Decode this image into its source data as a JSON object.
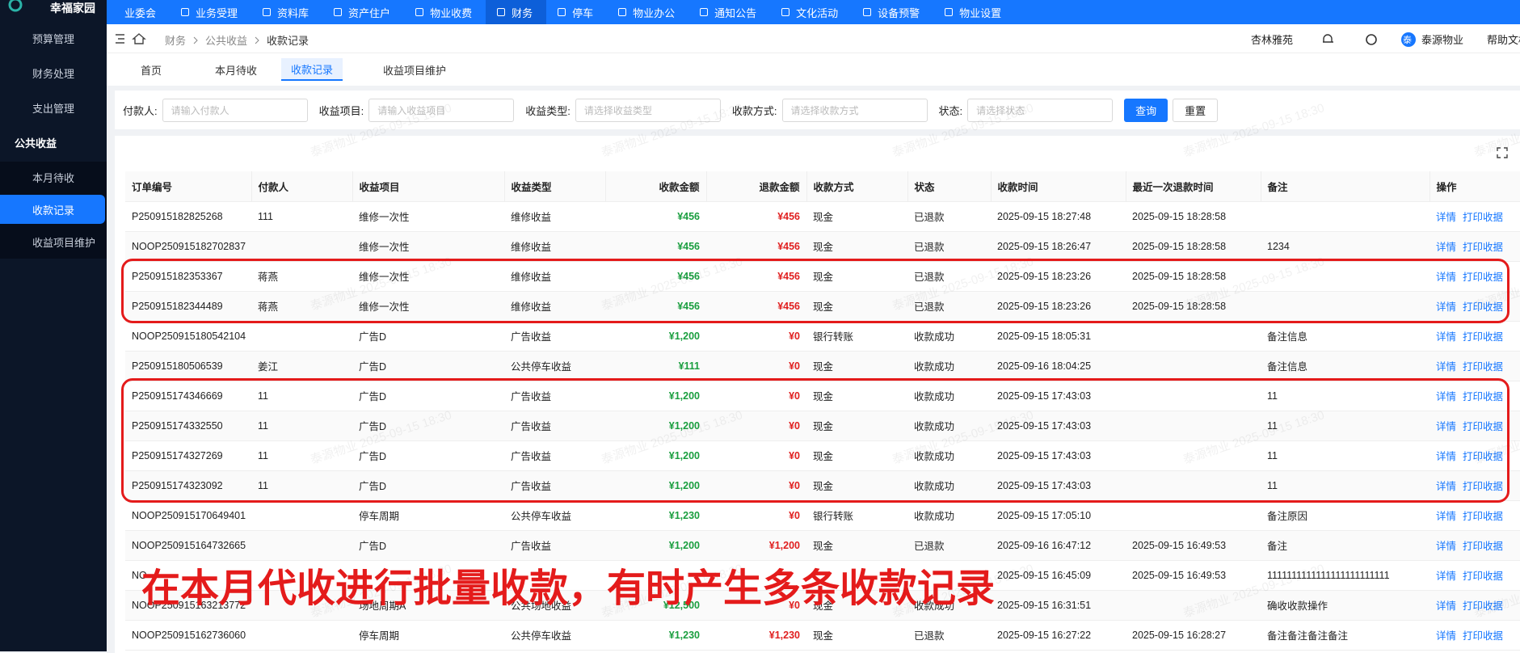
{
  "sidebar": {
    "app_name": "幸福家园",
    "menu": [
      "预算管理",
      "财务处理",
      "支出管理",
      "公共收益"
    ],
    "submenu": [
      "本月待收",
      "收款记录",
      "收益项目维护"
    ]
  },
  "top_nav": [
    "业委会",
    "业务受理",
    "资料库",
    "资产住户",
    "物业收费",
    "财务",
    "停车",
    "物业办公",
    "通知公告",
    "文化活动",
    "设备预警",
    "物业设置"
  ],
  "breadcrumb": [
    "财务",
    "公共收益",
    "收款记录"
  ],
  "header_right": {
    "community": "杏林雅苑",
    "avatar": "泰",
    "company": "泰源物业",
    "help": "帮助文档"
  },
  "tabs": [
    "首页",
    "本月待收",
    "收款记录",
    "收益项目维护"
  ],
  "filters": [
    {
      "label": "付款人:",
      "placeholder": "请输入付款人"
    },
    {
      "label": "收益项目:",
      "placeholder": "请输入收益项目"
    },
    {
      "label": "收益类型:",
      "placeholder": "请选择收益类型"
    },
    {
      "label": "收款方式:",
      "placeholder": "请选择收款方式"
    },
    {
      "label": "状态:",
      "placeholder": "请选择状态"
    }
  ],
  "buttons": [
    "查询",
    "重置"
  ],
  "table": {
    "columns": [
      "订单编号",
      "付款人",
      "收益项目",
      "收益类型",
      "收款金额",
      "退款金额",
      "收款方式",
      "状态",
      "收款时间",
      "最近一次退款时间",
      "备注",
      "操作"
    ],
    "rows": [
      [
        "P250915182825268",
        "111",
        "维修一次性",
        "维修收益",
        "¥456",
        "¥456",
        "现金",
        "已退款",
        "2025-09-15 18:27:48",
        "2025-09-15 18:28:58",
        null
      ],
      [
        "NOOP250915182702837",
        null,
        "维修一次性",
        "维修收益",
        "¥456",
        "¥456",
        "现金",
        "已退款",
        "2025-09-15 18:26:47",
        "2025-09-15 18:28:58",
        "1234"
      ],
      [
        "P250915182353367",
        "蒋燕",
        "维修一次性",
        "维修收益",
        "¥456",
        "¥456",
        "现金",
        "已退款",
        "2025-09-15 18:23:26",
        "2025-09-15 18:28:58",
        null
      ],
      [
        "P250915182344489",
        "蒋燕",
        "维修一次性",
        "维修收益",
        "¥456",
        "¥456",
        "现金",
        "已退款",
        "2025-09-15 18:23:26",
        "2025-09-15 18:28:58",
        null
      ],
      [
        "NOOP250915180542104",
        null,
        "广告D",
        "广告收益",
        "¥1,200",
        "¥0",
        "银行转账",
        "收款成功",
        "2025-09-15 18:05:31",
        null,
        "备注信息"
      ],
      [
        "P250915180506539",
        "姜江",
        "广告D",
        "公共停车收益",
        "¥111",
        "¥0",
        "现金",
        "收款成功",
        "2025-09-16 18:04:25",
        null,
        "备注信息"
      ],
      [
        "P250915174346669",
        "11",
        "广告D",
        "广告收益",
        "¥1,200",
        "¥0",
        "现金",
        "收款成功",
        "2025-09-15 17:43:03",
        null,
        "11"
      ],
      [
        "P250915174332550",
        "11",
        "广告D",
        "广告收益",
        "¥1,200",
        "¥0",
        "现金",
        "收款成功",
        "2025-09-15 17:43:03",
        null,
        "11"
      ],
      [
        "P250915174327269",
        "11",
        "广告D",
        "广告收益",
        "¥1,200",
        "¥0",
        "现金",
        "收款成功",
        "2025-09-15 17:43:03",
        null,
        "11"
      ],
      [
        "P250915174323092",
        "11",
        "广告D",
        "广告收益",
        "¥1,200",
        "¥0",
        "现金",
        "收款成功",
        "2025-09-15 17:43:03",
        null,
        "11"
      ],
      [
        "NOOP250915170649401",
        null,
        "停车周期",
        "公共停车收益",
        "¥1,230",
        "¥0",
        "银行转账",
        "收款成功",
        "2025-09-15 17:05:10",
        null,
        "备注原因"
      ],
      [
        "NOOP250915164732665",
        null,
        "广告D",
        "广告收益",
        "¥1,200",
        "¥1,200",
        "现金",
        "已退款",
        "2025-09-16 16:47:12",
        "2025-09-15 16:49:53",
        "备注"
      ],
      [
        "NO",
        null,
        null,
        null,
        null,
        null,
        null,
        null,
        "2025-09-15 16:45:09",
        "2025-09-15 16:49:53",
        "1111111111111111111111111"
      ],
      [
        "NOOP250915163213772",
        null,
        "场地周期A",
        "公共场地收益",
        "¥12,500",
        "¥0",
        "现金",
        "收款成功",
        "2025-09-15 16:31:51",
        null,
        "确收收款操作"
      ],
      [
        "NOOP250915162736060",
        null,
        "停车周期",
        "公共停车收益",
        "¥1,230",
        "¥1,230",
        "现金",
        "已退款",
        "2025-09-15 16:27:22",
        "2025-09-15 16:28:27",
        "备注备注备注备注"
      ]
    ],
    "row_actions": [
      "详情",
      "打印收据"
    ]
  },
  "annotation": "在本月代收进行批量收款，有时产生多条收款记录",
  "watermark": "泰源物业 2025-09-15 18:30"
}
